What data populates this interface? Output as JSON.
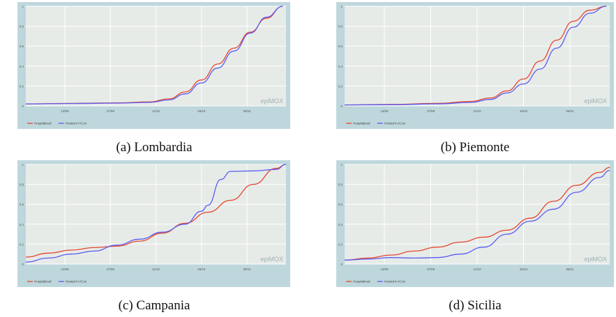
{
  "colors": {
    "hospitalized": "#e8452c",
    "icu": "#5b5bf0",
    "frame": "#bed7dc",
    "plot": "#e6ebe8",
    "grid": "#ffffff",
    "watermark": "#9fb0b3"
  },
  "chart_data": [
    {
      "type": "line",
      "caption": "(a) Lombardia",
      "watermark": "epiMOX",
      "x_ticks": [
        "13/09",
        "27/09",
        "11/10",
        "25/10",
        "08/11"
      ],
      "y_ticks": [
        "0",
        "0.2",
        "0.4",
        "0.6",
        "0.8",
        "1"
      ],
      "ylim": [
        0,
        1
      ],
      "legend": "bottom-left",
      "grid": true,
      "series": [
        {
          "name": "Hospitalized",
          "x": [
            "01/09",
            "15/09",
            "29/09",
            "09/10",
            "15/10",
            "20/10",
            "25/10",
            "30/10",
            "04/11",
            "09/11",
            "14/11",
            "19/11"
          ],
          "values": [
            0.02,
            0.025,
            0.03,
            0.04,
            0.07,
            0.14,
            0.26,
            0.42,
            0.58,
            0.74,
            0.88,
            1.0
          ]
        },
        {
          "name": "Hosted in ICUs",
          "x": [
            "01/09",
            "15/09",
            "29/09",
            "09/10",
            "15/10",
            "20/10",
            "25/10",
            "30/10",
            "04/11",
            "09/11",
            "14/11",
            "19/11"
          ],
          "values": [
            0.02,
            0.024,
            0.028,
            0.035,
            0.06,
            0.12,
            0.23,
            0.38,
            0.55,
            0.73,
            0.89,
            1.0
          ]
        }
      ]
    },
    {
      "type": "line",
      "caption": "(b) Piemonte",
      "watermark": "epiMOX",
      "x_ticks": [
        "13/09",
        "27/09",
        "11/10",
        "25/10",
        "08/11"
      ],
      "y_ticks": [
        "0",
        "0.2",
        "0.4",
        "0.6",
        "0.8",
        "1"
      ],
      "ylim": [
        0,
        1
      ],
      "legend": "bottom-left",
      "grid": true,
      "series": [
        {
          "name": "Hospitalized",
          "x": [
            "01/09",
            "15/09",
            "29/09",
            "09/10",
            "15/10",
            "20/10",
            "25/10",
            "30/10",
            "04/11",
            "09/11",
            "14/11",
            "19/11"
          ],
          "values": [
            0.01,
            0.015,
            0.025,
            0.045,
            0.08,
            0.15,
            0.27,
            0.45,
            0.66,
            0.85,
            0.96,
            1.0
          ]
        },
        {
          "name": "Hosted in ICUs",
          "x": [
            "01/09",
            "15/09",
            "29/09",
            "09/10",
            "15/10",
            "20/10",
            "25/10",
            "30/10",
            "04/11",
            "09/11",
            "14/11",
            "19/11"
          ],
          "values": [
            0.01,
            0.012,
            0.02,
            0.035,
            0.065,
            0.13,
            0.22,
            0.37,
            0.58,
            0.79,
            0.93,
            1.0
          ]
        }
      ]
    },
    {
      "type": "line",
      "caption": "(c) Campania",
      "watermark": "epiMOX",
      "x_ticks": [
        "13/09",
        "27/09",
        "11/10",
        "25/10",
        "08/11"
      ],
      "y_ticks": [
        "0",
        "0.2",
        "0.4",
        "0.6",
        "0.8",
        "1"
      ],
      "ylim": [
        0,
        1
      ],
      "legend": "bottom-left",
      "grid": true,
      "series": [
        {
          "name": "Hospitalized",
          "x": [
            "01/09",
            "08/09",
            "15/09",
            "22/09",
            "29/09",
            "06/10",
            "13/10",
            "20/10",
            "27/10",
            "03/11",
            "10/11",
            "17/11",
            "20/11"
          ],
          "values": [
            0.07,
            0.11,
            0.14,
            0.165,
            0.18,
            0.23,
            0.31,
            0.41,
            0.52,
            0.64,
            0.8,
            0.96,
            1.0
          ]
        },
        {
          "name": "Hosted in ICUs",
          "x": [
            "01/09",
            "08/09",
            "15/09",
            "22/09",
            "29/09",
            "06/10",
            "13/10",
            "20/10",
            "25/10",
            "27/10",
            "31/10",
            "03/11",
            "10/11",
            "17/11",
            "20/11"
          ],
          "values": [
            0.02,
            0.06,
            0.1,
            0.13,
            0.19,
            0.25,
            0.32,
            0.4,
            0.53,
            0.59,
            0.85,
            0.93,
            0.935,
            0.95,
            1.0
          ]
        }
      ]
    },
    {
      "type": "line",
      "caption": "(d) Sicilia",
      "watermark": "epiMOX",
      "x_ticks": [
        "13/09",
        "27/09",
        "11/10",
        "25/10",
        "08/11"
      ],
      "y_ticks": [
        "0",
        "0.2",
        "0.4",
        "0.6",
        "0.8",
        "1"
      ],
      "ylim": [
        0,
        1
      ],
      "legend": "bottom-left",
      "grid": true,
      "series": [
        {
          "name": "Hospitalized",
          "x": [
            "01/09",
            "08/09",
            "15/09",
            "22/09",
            "29/09",
            "06/10",
            "13/10",
            "20/10",
            "27/10",
            "03/11",
            "10/11",
            "17/11",
            "20/11"
          ],
          "values": [
            0.04,
            0.06,
            0.09,
            0.13,
            0.17,
            0.22,
            0.27,
            0.34,
            0.46,
            0.63,
            0.79,
            0.92,
            0.97
          ]
        },
        {
          "name": "Hosted in ICUs",
          "x": [
            "01/09",
            "08/09",
            "15/09",
            "22/09",
            "29/09",
            "06/10",
            "13/10",
            "20/10",
            "27/10",
            "03/11",
            "10/11",
            "17/11",
            "20/11"
          ],
          "values": [
            0.04,
            0.05,
            0.065,
            0.06,
            0.065,
            0.1,
            0.17,
            0.3,
            0.43,
            0.55,
            0.72,
            0.87,
            0.94
          ]
        }
      ]
    }
  ]
}
